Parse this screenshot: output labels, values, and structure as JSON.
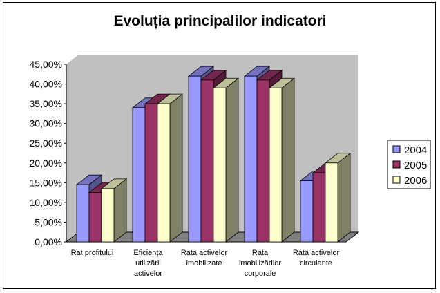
{
  "chart_data": {
    "type": "bar",
    "title": "Evoluția principalilor indicatori",
    "categories": [
      [
        "Rat profitului"
      ],
      [
        "Eficiența",
        "utilizării",
        "activelor"
      ],
      [
        "Rata activelor",
        "imobilizate"
      ],
      [
        "Rata",
        "imobilizărilor",
        "corporale"
      ],
      [
        "Rata activelor",
        "circulante"
      ]
    ],
    "series": [
      {
        "name": "2004",
        "color": "#9999FF",
        "values": [
          14.5,
          34.0,
          42.0,
          42.0,
          15.5
        ]
      },
      {
        "name": "2005",
        "color": "#993366",
        "values": [
          12.5,
          35.0,
          41.0,
          41.0,
          17.5
        ]
      },
      {
        "name": "2006",
        "color": "#FFFFCC",
        "values": [
          13.5,
          35.0,
          39.0,
          39.0,
          20.0
        ]
      }
    ],
    "ylim": [
      0,
      45
    ],
    "yticks": [
      "0,00%",
      "5,00%",
      "10,00%",
      "15,00%",
      "20,00%",
      "25,00%",
      "30,00%",
      "35,00%",
      "40,00%",
      "45,00%"
    ],
    "walls": {
      "back": "#C0C0C0",
      "floor": "#808080"
    },
    "legend": "right"
  }
}
